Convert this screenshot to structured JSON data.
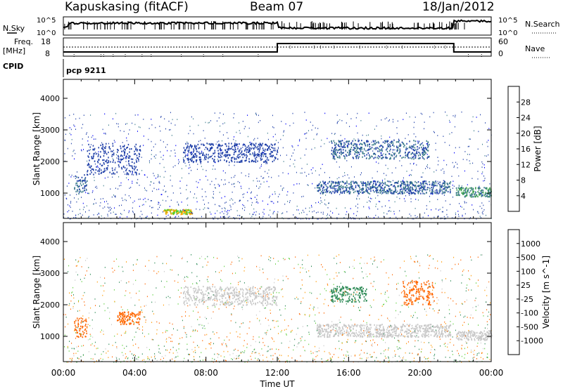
{
  "header": {
    "station": "Kapuskasing (fitACF)",
    "beam": "Beam 07",
    "date": "18/Jan/2012"
  },
  "noise_panel": {
    "left_label": "N.Sky",
    "right_label": "N.Search",
    "left_ticks": [
      "10^5",
      "10^0"
    ],
    "right_ticks": [
      "10^5",
      "10^0"
    ]
  },
  "freq_panel": {
    "left_label_1": "Freq.",
    "left_label_2": "[MHz]",
    "left_ticks": [
      "18",
      "8"
    ],
    "right_label": "Nave",
    "right_ticks": [
      "60",
      "0"
    ]
  },
  "cpid": {
    "label": "CPID",
    "value": "pcp 9211"
  },
  "colors": {
    "power": [
      "#0000ff",
      "#1f3fa8",
      "#3d7d8c",
      "#3ca04f",
      "#4dd12c",
      "#ffa500",
      "#ff5500",
      "#ff0000"
    ],
    "velocity": [
      "#ff0000",
      "#ff6600",
      "#ff9a00",
      "#c8c8c8",
      "#c8c8c8",
      "#60d040",
      "#2e8b57",
      "#1f3fa8",
      "#0000ff"
    ]
  },
  "chart_data": [
    {
      "type": "heatmap",
      "title": "Power",
      "ylabel": "Slant Range [km]",
      "ylim": [
        200,
        4600
      ],
      "yticks": [
        "1000",
        "2000",
        "3000",
        "4000"
      ],
      "xticks": [
        "00:00",
        "04:00",
        "08:00",
        "12:00",
        "16:00",
        "20:00",
        "00:00"
      ],
      "xlim_hours": [
        0,
        24
      ],
      "colorbar": {
        "label": "Power [dB]",
        "ticks": [
          "4",
          "8",
          "12",
          "16",
          "20",
          "24",
          "28"
        ],
        "range": [
          0,
          30
        ]
      },
      "echo_regions": [
        {
          "name": "A",
          "t_start": 0.6,
          "t_end": 1.3,
          "range_start": 1000,
          "range_end": 1600,
          "value": 8
        },
        {
          "name": "B",
          "t_start": 1.3,
          "t_end": 4.3,
          "range_start": 1600,
          "range_end": 2600,
          "value": 6
        },
        {
          "name": "C",
          "t_start": 6.7,
          "t_end": 12.0,
          "range_start": 2000,
          "range_end": 2600,
          "value": 6
        },
        {
          "name": "D",
          "t_start": 5.6,
          "t_end": 7.2,
          "range_start": 350,
          "range_end": 500,
          "value": 20
        },
        {
          "name": "E",
          "t_start": 14.2,
          "t_end": 21.7,
          "range_start": 1000,
          "range_end": 1400,
          "value": 8
        },
        {
          "name": "F",
          "t_start": 15.0,
          "t_end": 20.5,
          "range_start": 2100,
          "range_end": 2700,
          "value": 8
        },
        {
          "name": "G",
          "t_start": 22.0,
          "t_end": 24.0,
          "range_start": 900,
          "range_end": 1200,
          "value": 12
        }
      ]
    },
    {
      "type": "heatmap",
      "title": "Velocity",
      "ylabel": "Slant Range [km]",
      "ylim": [
        200,
        4600
      ],
      "yticks": [
        "1000",
        "2000",
        "3000",
        "4000"
      ],
      "xticks": [
        "00:00",
        "04:00",
        "08:00",
        "12:00",
        "16:00",
        "20:00",
        "00:00"
      ],
      "xlim_hours": [
        0,
        24
      ],
      "xlabel": "Time UT",
      "colorbar": {
        "label": "Velocity [m s^-1]",
        "ticks": [
          "1000",
          "500",
          "100",
          "25",
          "-25",
          "-100",
          "-500",
          "-1000"
        ]
      },
      "echo_regions": [
        {
          "name": "A",
          "t_start": 0.6,
          "t_end": 1.3,
          "range_start": 1000,
          "range_end": 1600,
          "value": -300
        },
        {
          "name": "B",
          "t_start": 3.0,
          "t_end": 4.3,
          "range_start": 1400,
          "range_end": 1800,
          "value": -200
        },
        {
          "name": "C",
          "t_start": 6.7,
          "t_end": 12.0,
          "range_start": 2000,
          "range_end": 2600,
          "value": 0
        },
        {
          "name": "E",
          "t_start": 14.2,
          "t_end": 21.7,
          "range_start": 1000,
          "range_end": 1400,
          "value": 0
        },
        {
          "name": "F",
          "t_start": 15.0,
          "t_end": 17.0,
          "range_start": 2100,
          "range_end": 2600,
          "value": 300
        },
        {
          "name": "H",
          "t_start": 19.0,
          "t_end": 20.8,
          "range_start": 2000,
          "range_end": 2800,
          "value": -300
        },
        {
          "name": "G",
          "t_start": 22.0,
          "t_end": 24.0,
          "range_start": 900,
          "range_end": 1200,
          "value": 0
        }
      ]
    }
  ]
}
